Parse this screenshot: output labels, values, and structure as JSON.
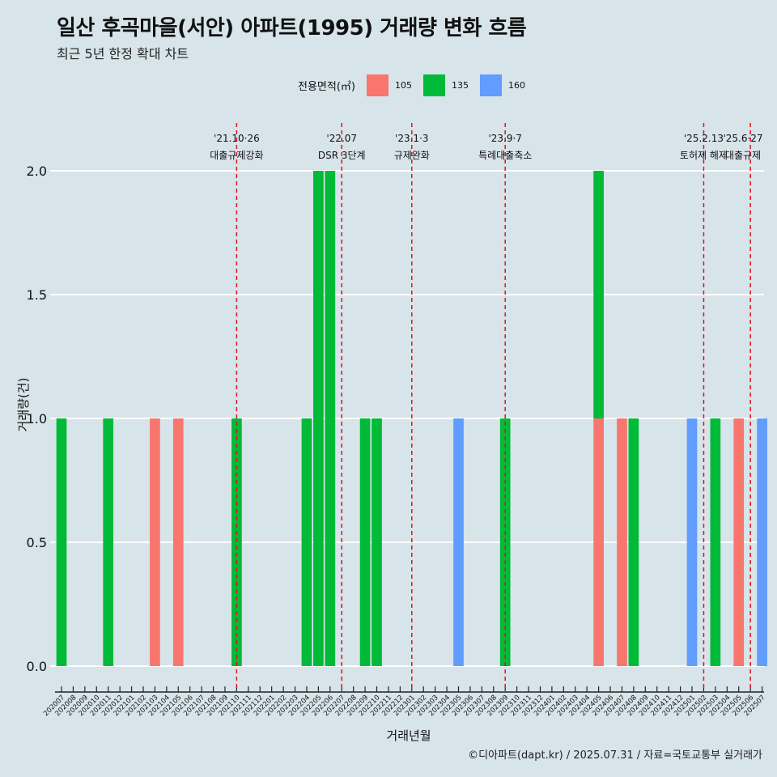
{
  "title": "일산 후곡마을(서안) 아파트(1995) 거래량 변화 흐름",
  "subtitle": "최근 5년 한정 확대 차트",
  "caption": "©디아파트(dapt.kr) / 2025.07.31 / 자료=국토교통부 실거래가",
  "legend": {
    "title": "전용면적(㎡)",
    "items": [
      {
        "label": "105",
        "color": "#f8766d"
      },
      {
        "label": "135",
        "color": "#00ba38"
      },
      {
        "label": "160",
        "color": "#619cff"
      }
    ]
  },
  "chart_data": {
    "type": "bar",
    "xlabel": "거래년월",
    "ylabel": "거래량(건)",
    "ylim": [
      0,
      2
    ],
    "yticks": [
      0.0,
      0.5,
      1.0,
      1.5,
      2.0
    ],
    "yticklabels": [
      "0.0",
      "0.5",
      "1.0",
      "1.5",
      "2.0"
    ],
    "grid": true,
    "legend_position": "top",
    "categories": [
      "202007",
      "202008",
      "202009",
      "202010",
      "202011",
      "202012",
      "202101",
      "202102",
      "202103",
      "202104",
      "202105",
      "202106",
      "202107",
      "202108",
      "202109",
      "202110",
      "202111",
      "202112",
      "202201",
      "202202",
      "202203",
      "202204",
      "202205",
      "202206",
      "202207",
      "202208",
      "202209",
      "202210",
      "202211",
      "202212",
      "202301",
      "202302",
      "202303",
      "202304",
      "202305",
      "202306",
      "202307",
      "202308",
      "202309",
      "202310",
      "202311",
      "202312",
      "202401",
      "202402",
      "202403",
      "202404",
      "202405",
      "202406",
      "202407",
      "202408",
      "202409",
      "202410",
      "202411",
      "202412",
      "202501",
      "202502",
      "202503",
      "202504",
      "202505",
      "202506",
      "202507"
    ],
    "series": [
      {
        "name": "105",
        "color": "#f8766d",
        "values": [
          0,
          0,
          0,
          0,
          0,
          0,
          0,
          0,
          1,
          0,
          1,
          0,
          0,
          0,
          0,
          0,
          0,
          0,
          0,
          0,
          0,
          0,
          0,
          0,
          0,
          0,
          0,
          0,
          0,
          0,
          0,
          0,
          0,
          0,
          0,
          0,
          0,
          0,
          0,
          0,
          0,
          0,
          0,
          0,
          0,
          0,
          1,
          0,
          1,
          0,
          0,
          0,
          0,
          0,
          0,
          0,
          0,
          0,
          1,
          0,
          0
        ]
      },
      {
        "name": "135",
        "color": "#00ba38",
        "values": [
          1,
          0,
          0,
          0,
          1,
          0,
          0,
          0,
          0,
          0,
          0,
          0,
          0,
          0,
          0,
          1,
          0,
          0,
          0,
          0,
          0,
          1,
          2,
          2,
          0,
          0,
          1,
          1,
          0,
          0,
          0,
          0,
          0,
          0,
          0,
          0,
          0,
          0,
          1,
          0,
          0,
          0,
          0,
          0,
          0,
          0,
          1,
          0,
          0,
          1,
          0,
          0,
          0,
          0,
          0,
          0,
          1,
          0,
          0,
          0,
          0
        ]
      },
      {
        "name": "160",
        "color": "#619cff",
        "values": [
          0,
          0,
          0,
          0,
          0,
          0,
          0,
          0,
          0,
          0,
          0,
          0,
          0,
          0,
          0,
          0,
          0,
          0,
          0,
          0,
          0,
          0,
          0,
          0,
          0,
          0,
          0,
          0,
          0,
          0,
          0,
          0,
          0,
          0,
          1,
          0,
          0,
          0,
          0,
          0,
          0,
          0,
          0,
          0,
          0,
          0,
          0,
          0,
          0,
          0,
          0,
          0,
          0,
          0,
          1,
          0,
          0,
          0,
          0,
          0,
          1
        ]
      }
    ],
    "annotations": [
      {
        "x": "202110",
        "date": "'21.10·26",
        "text": "대출규제강화"
      },
      {
        "x": "202207",
        "date": "'22.07",
        "text": "DSR 3단계"
      },
      {
        "x": "202301",
        "date": "'23.1·3",
        "text": "규제완화"
      },
      {
        "x": "202309",
        "date": "'23.9·7",
        "text": "특례대출축소"
      },
      {
        "x": "202502",
        "date": "'25.2.13",
        "text": "토허제 해제"
      },
      {
        "x": "202506",
        "date": "'25.6·27",
        "text": "대출규제"
      }
    ]
  }
}
